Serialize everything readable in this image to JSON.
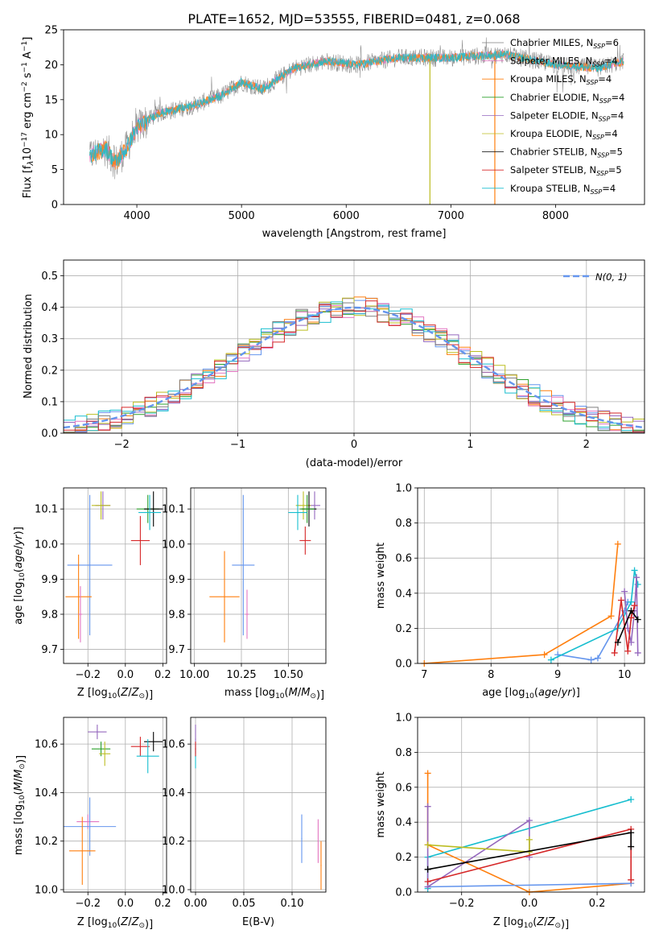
{
  "title": "PLATE=1652, MJD=53555, FIBERID=0481, z=0.068",
  "colors": {
    "chabrier_miles": "#7f7f7f",
    "salpeter_miles": "#e377c2",
    "kroupa_miles": "#ff7f0e",
    "chabrier_elodie": "#2ca02c",
    "salpeter_elodie": "#9467bd",
    "kroupa_elodie": "#bcbd22",
    "chabrier_stelib": "#000000",
    "salpeter_stelib": "#d62728",
    "kroupa_stelib": "#17becf",
    "blue": "#1f77b4",
    "normal": "#6495ed"
  },
  "chart_data": [
    {
      "id": "spectrum",
      "type": "line",
      "title": "PLATE=1652, MJD=53555, FIBERID=0481, z=0.068",
      "xlabel": "wavelength [Angstrom, rest frame]",
      "ylabel_main": "Flux [f",
      "ylabel_parts": [
        "λ",
        "10",
        "−17",
        " erg cm",
        "−2",
        " s",
        "−1",
        " A",
        "−1",
        "]"
      ],
      "xlim": [
        3300,
        8850
      ],
      "ylim": [
        0,
        25
      ],
      "xticks": [
        "4000",
        "5000",
        "6000",
        "7000",
        "8000"
      ],
      "yticks": [
        "0",
        "5",
        "10",
        "15",
        "20",
        "25"
      ],
      "continuum": [
        [
          3550,
          7
        ],
        [
          3700,
          8
        ],
        [
          3800,
          6
        ],
        [
          3900,
          8
        ],
        [
          4000,
          11
        ],
        [
          4200,
          13
        ],
        [
          4500,
          14
        ],
        [
          4800,
          15.5
        ],
        [
          5000,
          17.5
        ],
        [
          5200,
          16.5
        ],
        [
          5500,
          19.5
        ],
        [
          5800,
          20.5
        ],
        [
          6100,
          20
        ],
        [
          6500,
          21
        ],
        [
          7000,
          21
        ],
        [
          7500,
          21.5
        ],
        [
          8000,
          20
        ],
        [
          8400,
          19.5
        ],
        [
          8650,
          20.5
        ]
      ],
      "series": [
        {
          "name": "Chabrier MILES, N",
          "sub": "SSP",
          "suffix": "=6",
          "color": "#7f7f7f"
        },
        {
          "name": "Salpeter MILES, N",
          "sub": "SSP",
          "suffix": "=4",
          "color": "#e377c2"
        },
        {
          "name": "Kroupa MILES, N",
          "sub": "SSP",
          "suffix": "=4",
          "color": "#ff7f0e"
        },
        {
          "name": "Chabrier ELODIE, N",
          "sub": "SSP",
          "suffix": "=4",
          "color": "#2ca02c"
        },
        {
          "name": "Salpeter ELODIE, N",
          "sub": "SSP",
          "suffix": "=4",
          "color": "#9467bd"
        },
        {
          "name": "Kroupa ELODIE, N",
          "sub": "SSP",
          "suffix": "=4",
          "color": "#bcbd22"
        },
        {
          "name": "Chabrier STELIB, N",
          "sub": "SSP",
          "suffix": "=5",
          "color": "#000000"
        },
        {
          "name": "Salpeter STELIB, N",
          "sub": "SSP",
          "suffix": "=5",
          "color": "#d62728"
        },
        {
          "name": "Kroupa STELIB, N",
          "sub": "SSP",
          "suffix": "=4",
          "color": "#17becf"
        }
      ]
    },
    {
      "id": "residuals",
      "type": "bar",
      "xlabel": "(data-model)/error",
      "ylabel": "Normed distribution",
      "xlim": [
        -2.5,
        2.5
      ],
      "ylim": [
        0,
        0.55
      ],
      "xticks": [
        "−2",
        "−1",
        "0",
        "1",
        "2"
      ],
      "yticks": [
        "0.0",
        "0.1",
        "0.2",
        "0.3",
        "0.4",
        "0.5"
      ],
      "legend": "N(0, 1)",
      "bin_width": 0.1,
      "hist_colors": [
        "#6495ed",
        "#ff7f0e",
        "#2ca02c",
        "#9467bd",
        "#e377c2",
        "#bcbd22",
        "#17becf",
        "#7f7f7f",
        "#d62728"
      ]
    },
    {
      "id": "age_vs_Z",
      "type": "scatter",
      "xlabel": "Z [log10(Z/Z⊙)]",
      "ylabel": "age  [log10(age/yr)]",
      "xlim": [
        -0.33,
        0.22
      ],
      "ylim": [
        9.66,
        10.16
      ],
      "xticks": [
        "−0.2",
        "0.0",
        "0.2"
      ],
      "yticks": [
        "9.7",
        "9.8",
        "9.9",
        "10.0",
        "10.1"
      ],
      "points": [
        {
          "x": -0.12,
          "y": 10.11,
          "xerr": 0.04,
          "yerr": 0.04,
          "color": "#9467bd"
        },
        {
          "x": -0.13,
          "y": 10.11,
          "xerr": 0.05,
          "yerr": 0.04,
          "color": "#bcbd22"
        },
        {
          "x": 0.12,
          "y": 10.1,
          "xerr": 0.06,
          "yerr": 0.04,
          "color": "#2ca02c"
        },
        {
          "x": 0.15,
          "y": 10.1,
          "xerr": 0.05,
          "yerr": 0.05,
          "color": "#000000"
        },
        {
          "x": 0.13,
          "y": 10.09,
          "xerr": 0.06,
          "yerr": 0.05,
          "color": "#17becf"
        },
        {
          "x": 0.08,
          "y": 10.01,
          "xerr": 0.05,
          "yerr": 0.07,
          "color": "#d62728"
        },
        {
          "x": -0.19,
          "y": 9.94,
          "xerr": 0.12,
          "yerr": 0.2,
          "color": "#6495ed"
        },
        {
          "x": -0.25,
          "y": 9.85,
          "xerr": 0.07,
          "yerr": 0.12,
          "color": "#ff7f0e"
        },
        {
          "x": -0.24,
          "y": 9.8,
          "xerr": 0.01,
          "yerr": 0.08,
          "color": "#e377c2"
        }
      ]
    },
    {
      "id": "age_vs_mass",
      "type": "scatter",
      "xlabel": "mass [log10(M/M⊙)]",
      "xlim": [
        9.98,
        10.7
      ],
      "ylim": [
        9.66,
        10.16
      ],
      "xticks": [
        "10.00",
        "10.25",
        "10.50"
      ],
      "yticks": [
        "9.7",
        "9.8",
        "9.9",
        "10.0",
        "10.1"
      ],
      "points": [
        {
          "x": 10.64,
          "y": 10.11,
          "xerr": 0.03,
          "yerr": 0.04,
          "color": "#9467bd"
        },
        {
          "x": 10.58,
          "y": 10.11,
          "xerr": 0.04,
          "yerr": 0.04,
          "color": "#bcbd22"
        },
        {
          "x": 10.61,
          "y": 10.1,
          "xerr": 0.04,
          "yerr": 0.05,
          "color": "#000000"
        },
        {
          "x": 10.6,
          "y": 10.1,
          "xerr": 0.04,
          "yerr": 0.04,
          "color": "#2ca02c"
        },
        {
          "x": 10.55,
          "y": 10.09,
          "xerr": 0.05,
          "yerr": 0.05,
          "color": "#17becf"
        },
        {
          "x": 10.59,
          "y": 10.01,
          "xerr": 0.03,
          "yerr": 0.04,
          "color": "#d62728"
        },
        {
          "x": 10.26,
          "y": 9.94,
          "xerr": 0.06,
          "yerr": 0.2,
          "color": "#6495ed"
        },
        {
          "x": 10.16,
          "y": 9.85,
          "xerr": 0.08,
          "yerr": 0.13,
          "color": "#ff7f0e"
        },
        {
          "x": 10.28,
          "y": 9.8,
          "xerr": 0.01,
          "yerr": 0.07,
          "color": "#e377c2"
        }
      ]
    },
    {
      "id": "mass_weight_age",
      "type": "line",
      "xlabel": "age  [log10(age/yr)]",
      "ylabel": "mass weight",
      "xlim": [
        6.9,
        10.3
      ],
      "ylim": [
        0,
        1
      ],
      "xticks": [
        "7",
        "8",
        "9",
        "10"
      ],
      "yticks": [
        "0.0",
        "0.2",
        "0.4",
        "0.6",
        "0.8",
        "1.0"
      ],
      "series": [
        {
          "color": "#ff7f0e",
          "points": [
            [
              7.0,
              0.0
            ],
            [
              8.8,
              0.05
            ],
            [
              9.8,
              0.27
            ],
            [
              9.9,
              0.68
            ]
          ]
        },
        {
          "color": "#6495ed",
          "points": [
            [
              9.0,
              0.05
            ],
            [
              9.5,
              0.02
            ],
            [
              9.6,
              0.03
            ],
            [
              10.0,
              0.3
            ],
            [
              10.05,
              0.35
            ]
          ]
        },
        {
          "color": "#17becf",
          "points": [
            [
              8.9,
              0.02
            ],
            [
              9.9,
              0.2
            ],
            [
              10.1,
              0.35
            ],
            [
              10.15,
              0.53
            ],
            [
              10.2,
              0.45
            ]
          ]
        },
        {
          "color": "#9467bd",
          "points": [
            [
              10.0,
              0.41
            ],
            [
              10.05,
              0.2
            ],
            [
              10.1,
              0.12
            ],
            [
              10.15,
              0.3
            ],
            [
              10.18,
              0.49
            ],
            [
              10.2,
              0.06
            ]
          ]
        },
        {
          "color": "#d62728",
          "points": [
            [
              9.85,
              0.06
            ],
            [
              9.95,
              0.36
            ],
            [
              10.05,
              0.07
            ],
            [
              10.1,
              0.26
            ],
            [
              10.15,
              0.33
            ]
          ]
        },
        {
          "color": "#000000",
          "points": [
            [
              9.9,
              0.12
            ],
            [
              10.1,
              0.3
            ],
            [
              10.2,
              0.25
            ]
          ]
        }
      ]
    },
    {
      "id": "mass_vs_Z",
      "type": "scatter",
      "xlabel": "Z [log10(Z/Z⊙)]",
      "ylabel": "mass [log10(M/M⊙)]",
      "xlim": [
        -0.33,
        0.22
      ],
      "ylim": [
        9.99,
        10.71
      ],
      "xticks": [
        "−0.2",
        "0.0",
        "0.2"
      ],
      "yticks": [
        "10.0",
        "10.2",
        "10.4",
        "10.6"
      ],
      "points": [
        {
          "x": -0.15,
          "y": 10.65,
          "xerr": 0.05,
          "yerr": 0.03,
          "color": "#9467bd"
        },
        {
          "x": -0.13,
          "y": 10.58,
          "xerr": 0.05,
          "yerr": 0.03,
          "color": "#2ca02c"
        },
        {
          "x": -0.11,
          "y": 10.56,
          "xerr": 0.03,
          "yerr": 0.05,
          "color": "#bcbd22"
        },
        {
          "x": 0.15,
          "y": 10.61,
          "xerr": 0.05,
          "yerr": 0.04,
          "color": "#000000"
        },
        {
          "x": 0.08,
          "y": 10.59,
          "xerr": 0.05,
          "yerr": 0.04,
          "color": "#d62728"
        },
        {
          "x": 0.12,
          "y": 10.55,
          "xerr": 0.06,
          "yerr": 0.07,
          "color": "#17becf"
        },
        {
          "x": -0.2,
          "y": 10.28,
          "xerr": 0.06,
          "yerr": 0.03,
          "color": "#e377c2"
        },
        {
          "x": -0.19,
          "y": 10.26,
          "xerr": 0.14,
          "yerr": 0.12,
          "color": "#6495ed"
        },
        {
          "x": -0.23,
          "y": 10.16,
          "xerr": 0.07,
          "yerr": 0.14,
          "color": "#ff7f0e"
        }
      ]
    },
    {
      "id": "mass_vs_ebv",
      "type": "scatter",
      "xlabel": "E(B-V)",
      "xlim": [
        -0.005,
        0.135
      ],
      "ylim": [
        9.99,
        10.71
      ],
      "xticks": [
        "0.00",
        "0.05",
        "0.10"
      ],
      "yticks": [
        "10.0",
        "10.2",
        "10.4",
        "10.6"
      ],
      "points": [
        {
          "x": 0.0,
          "y": 10.62,
          "xerr": 0.0005,
          "yerr": 0.06,
          "color": "#9467bd"
        },
        {
          "x": 0.0,
          "y": 10.55,
          "xerr": 0.0005,
          "yerr": 0.05,
          "color": "#17becf"
        },
        {
          "x": 0.0,
          "y": 10.58,
          "xerr": 0.0005,
          "yerr": 0.03,
          "color": "#d62728"
        },
        {
          "x": 0.11,
          "y": 10.21,
          "xerr": 0.0005,
          "yerr": 0.1,
          "color": "#6495ed"
        },
        {
          "x": 0.127,
          "y": 10.2,
          "xerr": 0.0005,
          "yerr": 0.09,
          "color": "#e377c2"
        },
        {
          "x": 0.13,
          "y": 10.1,
          "xerr": 0.0005,
          "yerr": 0.1,
          "color": "#ff7f0e"
        }
      ]
    },
    {
      "id": "mass_weight_Z",
      "type": "line",
      "xlabel": "Z [log10(Z/Z⊙)]",
      "ylabel": "mass weight",
      "xlim": [
        -0.33,
        0.34
      ],
      "ylim": [
        0,
        1
      ],
      "xticks": [
        "−0.2",
        "0.0",
        "0.2"
      ],
      "yticks": [
        "0.0",
        "0.2",
        "0.4",
        "0.6",
        "0.8",
        "1.0"
      ],
      "series": [
        {
          "color": "#ff7f0e",
          "points": [
            [
              -0.3,
              0.68
            ],
            [
              -0.3,
              0.27
            ],
            [
              0.0,
              0.0
            ],
            [
              0.3,
              0.05
            ]
          ]
        },
        {
          "color": "#6495ed",
          "points": [
            [
              -0.3,
              0.03
            ],
            [
              0.3,
              0.05
            ]
          ]
        },
        {
          "color": "#17becf",
          "points": [
            [
              -0.3,
              0.02
            ],
            [
              -0.3,
              0.2
            ],
            [
              0.3,
              0.53
            ]
          ]
        },
        {
          "color": "#9467bd",
          "points": [
            [
              -0.3,
              0.49
            ],
            [
              -0.3,
              0.03
            ],
            [
              0.0,
              0.41
            ],
            [
              0.0,
              0.2
            ]
          ]
        },
        {
          "color": "#bcbd22",
          "points": [
            [
              -0.3,
              0.27
            ],
            [
              0.0,
              0.23
            ],
            [
              0.0,
              0.3
            ]
          ]
        },
        {
          "color": "#d62728",
          "points": [
            [
              -0.3,
              0.06
            ],
            [
              0.3,
              0.36
            ],
            [
              0.3,
              0.07
            ]
          ]
        },
        {
          "color": "#000000",
          "points": [
            [
              -0.3,
              0.13
            ],
            [
              0.3,
              0.34
            ],
            [
              0.3,
              0.26
            ]
          ]
        }
      ]
    }
  ]
}
